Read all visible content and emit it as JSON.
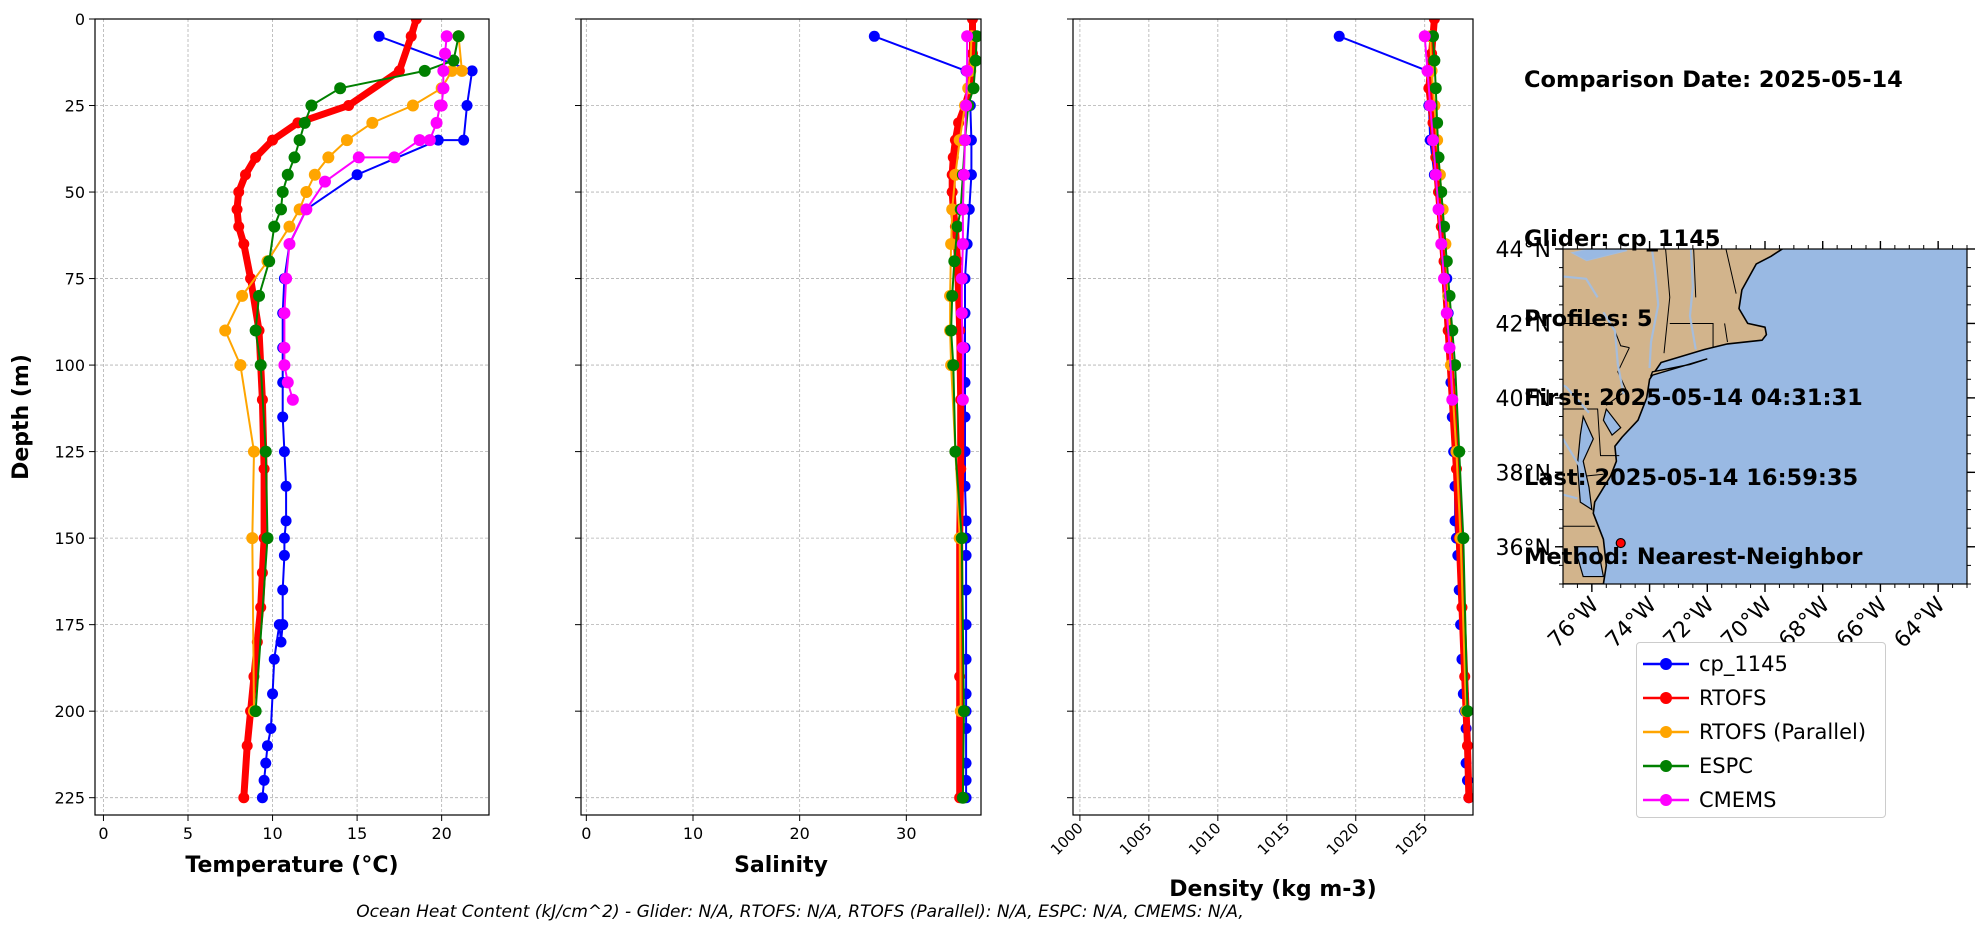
{
  "chart_data": [
    {
      "type": "line",
      "xlabel": "Temperature (°C)",
      "ylabel": "Depth (m)",
      "xlim": [
        -0.5,
        22.8
      ],
      "ylim": [
        230,
        0
      ],
      "xticks": [
        0,
        5,
        10,
        15,
        20
      ],
      "yticks": [
        0,
        25,
        50,
        75,
        100,
        125,
        150,
        175,
        200,
        225
      ],
      "grid": true,
      "series": [
        {
          "name": "cp_1145",
          "color": "#0000ff",
          "x": [
            16.3,
            21.8,
            21.5,
            21.3,
            19.8,
            15.0,
            12.0,
            11.0,
            10.7,
            10.6,
            10.6,
            10.6,
            10.6,
            10.7,
            10.8,
            10.8,
            10.7,
            10.7,
            10.6,
            10.6,
            10.6,
            10.5,
            10.4,
            10.1,
            10.0,
            9.9,
            9.7,
            9.6,
            9.5,
            9.4
          ],
          "y": [
            5,
            15,
            25,
            35,
            35,
            45,
            55,
            65,
            75,
            85,
            95,
            105,
            115,
            125,
            135,
            145,
            150,
            155,
            165,
            175,
            175,
            180,
            175,
            185,
            195,
            205,
            210,
            215,
            220,
            225
          ]
        },
        {
          "name": "RTOFS",
          "color": "#ff0000",
          "x": [
            18.5,
            18.2,
            17.5,
            14.5,
            11.5,
            10.0,
            9.0,
            8.4,
            8.0,
            7.9,
            8.0,
            8.3,
            8.7,
            9.2,
            9.4,
            9.5,
            9.5,
            9.4,
            9.3,
            9.1,
            8.9,
            8.7,
            8.5,
            8.3
          ],
          "y": [
            0,
            5,
            15,
            25,
            30,
            35,
            40,
            45,
            50,
            55,
            60,
            65,
            75,
            90,
            110,
            130,
            150,
            160,
            170,
            180,
            190,
            200,
            210,
            225
          ]
        },
        {
          "name": "RTOFS (Parallel)",
          "color": "#ffa500",
          "x": [
            21.0,
            21.2,
            20.6,
            20.0,
            18.3,
            15.9,
            14.4,
            13.3,
            12.5,
            12.0,
            11.6,
            11.0,
            9.7,
            8.2,
            7.2,
            8.1,
            8.9,
            8.8,
            8.9
          ],
          "y": [
            5,
            15,
            15,
            20,
            25,
            30,
            35,
            40,
            45,
            50,
            55,
            60,
            70,
            80,
            90,
            100,
            125,
            150,
            200
          ]
        },
        {
          "name": "ESPC",
          "color": "#008000",
          "x": [
            21.0,
            20.7,
            19.0,
            14.0,
            12.3,
            11.9,
            11.6,
            11.3,
            10.9,
            10.6,
            10.5,
            10.1,
            9.8,
            9.2,
            9.0,
            9.3,
            9.6,
            9.7,
            9.0
          ],
          "y": [
            5,
            12,
            15,
            20,
            25,
            30,
            35,
            40,
            45,
            50,
            55,
            60,
            70,
            80,
            90,
            100,
            125,
            150,
            200
          ]
        },
        {
          "name": "CMEMS",
          "color": "#ff00ff",
          "x": [
            20.3,
            20.2,
            20.1,
            20.1,
            20.1,
            20.0,
            19.9,
            19.7,
            19.3,
            18.7,
            17.2,
            15.1,
            13.1,
            12.0,
            11.0,
            10.8,
            10.7,
            10.7,
            10.7,
            10.9,
            11.2
          ],
          "y": [
            5,
            10,
            15,
            20,
            20,
            25,
            25,
            30,
            35,
            35,
            40,
            40,
            47,
            55,
            65,
            75,
            85,
            95,
            100,
            105,
            110
          ]
        }
      ]
    },
    {
      "type": "line",
      "xlabel": "Salinity",
      "ylabel": "",
      "xlim": [
        -0.5,
        37.0
      ],
      "ylim": [
        230,
        0
      ],
      "xticks": [
        0,
        10,
        20,
        30
      ],
      "yticks": [
        0,
        25,
        50,
        75,
        100,
        125,
        150,
        175,
        200,
        225
      ],
      "grid": true,
      "series": [
        {
          "name": "cp_1145",
          "color": "#0000ff",
          "x": [
            27.0,
            35.6,
            36.0,
            36.1,
            36.1,
            35.9,
            35.7,
            35.5,
            35.5,
            35.5,
            35.5,
            35.5,
            35.5,
            35.5,
            35.6,
            35.6,
            35.6,
            35.6,
            35.6,
            35.6,
            35.6,
            35.6,
            35.6,
            35.6,
            35.6,
            35.6
          ],
          "y": [
            5,
            15,
            25,
            35,
            45,
            55,
            65,
            75,
            85,
            95,
            105,
            115,
            125,
            135,
            145,
            150,
            155,
            165,
            175,
            185,
            195,
            200,
            205,
            215,
            220,
            225
          ]
        },
        {
          "name": "RTOFS",
          "color": "#ff0000",
          "x": [
            36.2,
            36.2,
            36.0,
            35.5,
            34.9,
            34.6,
            34.4,
            34.3,
            34.3,
            34.4,
            34.6,
            34.8,
            35.0,
            35.1,
            35.1,
            35.0,
            35.0,
            35.0
          ],
          "y": [
            0,
            10,
            20,
            25,
            30,
            35,
            40,
            45,
            50,
            55,
            60,
            70,
            90,
            110,
            130,
            150,
            190,
            225
          ]
        },
        {
          "name": "RTOFS (Parallel)",
          "color": "#ffa500",
          "x": [
            36.1,
            36.0,
            35.8,
            35.5,
            35.0,
            34.6,
            34.3,
            34.2,
            34.1,
            34.1,
            34.2,
            34.6,
            35.0,
            35.1
          ],
          "y": [
            5,
            15,
            20,
            25,
            35,
            45,
            55,
            65,
            80,
            90,
            100,
            125,
            150,
            200
          ]
        },
        {
          "name": "ESPC",
          "color": "#008000",
          "x": [
            36.6,
            36.5,
            36.3,
            35.8,
            35.5,
            35.3,
            35.1,
            34.8,
            34.5,
            34.3,
            34.2,
            34.4,
            34.6,
            35.2,
            35.4,
            35.3
          ],
          "y": [
            5,
            12,
            20,
            25,
            35,
            45,
            55,
            60,
            70,
            80,
            90,
            100,
            125,
            150,
            200,
            225
          ]
        },
        {
          "name": "CMEMS",
          "color": "#ff00ff",
          "x": [
            35.7,
            35.7,
            35.6,
            35.5,
            35.4,
            35.3,
            35.3,
            35.2,
            35.2,
            35.3,
            35.3
          ],
          "y": [
            5,
            15,
            25,
            35,
            45,
            55,
            65,
            75,
            85,
            95,
            110
          ]
        }
      ]
    },
    {
      "type": "line",
      "xlabel": "Density (kg m-3)",
      "ylabel": "",
      "xlim": [
        999.5,
        1028.5
      ],
      "ylim": [
        230,
        0
      ],
      "xticks": [
        1000,
        1005,
        1010,
        1015,
        1020,
        1025
      ],
      "yticks": [
        0,
        25,
        50,
        75,
        100,
        125,
        150,
        175,
        200,
        225
      ],
      "grid": true,
      "series": [
        {
          "name": "cp_1145",
          "color": "#0000ff",
          "x": [
            1018.8,
            1025.2,
            1025.3,
            1025.4,
            1025.7,
            1026.2,
            1026.5,
            1026.6,
            1026.7,
            1026.8,
            1026.9,
            1026.9,
            1027.0,
            1027.1,
            1027.2,
            1027.2,
            1027.3,
            1027.4,
            1027.5,
            1027.6,
            1027.7,
            1027.8,
            1027.9,
            1028.0,
            1028.0,
            1028.1,
            1028.2
          ],
          "y": [
            5,
            15,
            25,
            35,
            45,
            55,
            65,
            75,
            85,
            95,
            100,
            105,
            115,
            125,
            135,
            145,
            150,
            155,
            165,
            175,
            185,
            195,
            200,
            205,
            215,
            220,
            225
          ]
        },
        {
          "name": "RTOFS",
          "color": "#ff0000",
          "x": [
            1025.7,
            1025.5,
            1025.3,
            1025.6,
            1025.8,
            1026.0,
            1026.2,
            1026.4,
            1026.7,
            1027.0,
            1027.3,
            1027.5,
            1027.7,
            1027.9,
            1028.1,
            1028.2
          ],
          "y": [
            0,
            10,
            20,
            30,
            40,
            50,
            60,
            70,
            90,
            110,
            130,
            150,
            170,
            190,
            210,
            225
          ]
        },
        {
          "name": "RTOFS (Parallel)",
          "color": "#ffa500",
          "x": [
            1025.4,
            1025.5,
            1025.7,
            1025.9,
            1026.1,
            1026.3,
            1026.5,
            1026.7,
            1026.9,
            1027.3,
            1027.6,
            1028.0
          ],
          "y": [
            5,
            15,
            25,
            35,
            45,
            55,
            65,
            80,
            100,
            125,
            150,
            200
          ]
        },
        {
          "name": "ESPC",
          "color": "#008000",
          "x": [
            1025.6,
            1025.7,
            1025.8,
            1025.9,
            1026.0,
            1026.2,
            1026.4,
            1026.6,
            1026.8,
            1027.0,
            1027.2,
            1027.5,
            1027.8,
            1028.1
          ],
          "y": [
            5,
            12,
            20,
            30,
            40,
            50,
            60,
            70,
            80,
            90,
            100,
            125,
            150,
            200
          ]
        },
        {
          "name": "CMEMS",
          "color": "#ff00ff",
          "x": [
            1025.0,
            1025.2,
            1025.4,
            1025.6,
            1025.8,
            1026.0,
            1026.2,
            1026.4,
            1026.6,
            1026.8,
            1027.0
          ],
          "y": [
            5,
            15,
            25,
            35,
            45,
            55,
            65,
            75,
            85,
            95,
            110
          ]
        }
      ]
    },
    {
      "type": "map",
      "lon_range": [
        -77.0,
        -63.0
      ],
      "lat_range": [
        35.0,
        44.0
      ],
      "xticks": [
        "76°W",
        "74°W",
        "72°W",
        "70°W",
        "68°W",
        "66°W",
        "64°W"
      ],
      "yticks": [
        "44°N",
        "42°N",
        "40°N",
        "38°N",
        "36°N"
      ],
      "land_color": "#d2b48c",
      "ocean_color": "#99b9e3",
      "glider_position": {
        "lon": -75.0,
        "lat": 36.1,
        "color": "#ff0000"
      }
    }
  ],
  "info": {
    "lines": [
      "Comparison Date: 2025-05-14",
      "",
      "Glider: cp_1145",
      "Profiles: 5",
      "First: 2025-05-14 04:31:31",
      "Last: 2025-05-14 16:59:35",
      "Method: Nearest-Neighbor"
    ]
  },
  "legend": {
    "items": [
      {
        "label": "cp_1145",
        "color": "#0000ff"
      },
      {
        "label": "RTOFS",
        "color": "#ff0000"
      },
      {
        "label": "RTOFS (Parallel)",
        "color": "#ffa500"
      },
      {
        "label": "ESPC",
        "color": "#008000"
      },
      {
        "label": "CMEMS",
        "color": "#ff00ff"
      }
    ]
  },
  "footer": {
    "text": "Ocean Heat Content (kJ/cm^2) - Glider: N/A,  RTOFS: N/A,  RTOFS (Parallel): N/A,  ESPC: N/A,  CMEMS: N/A,"
  }
}
